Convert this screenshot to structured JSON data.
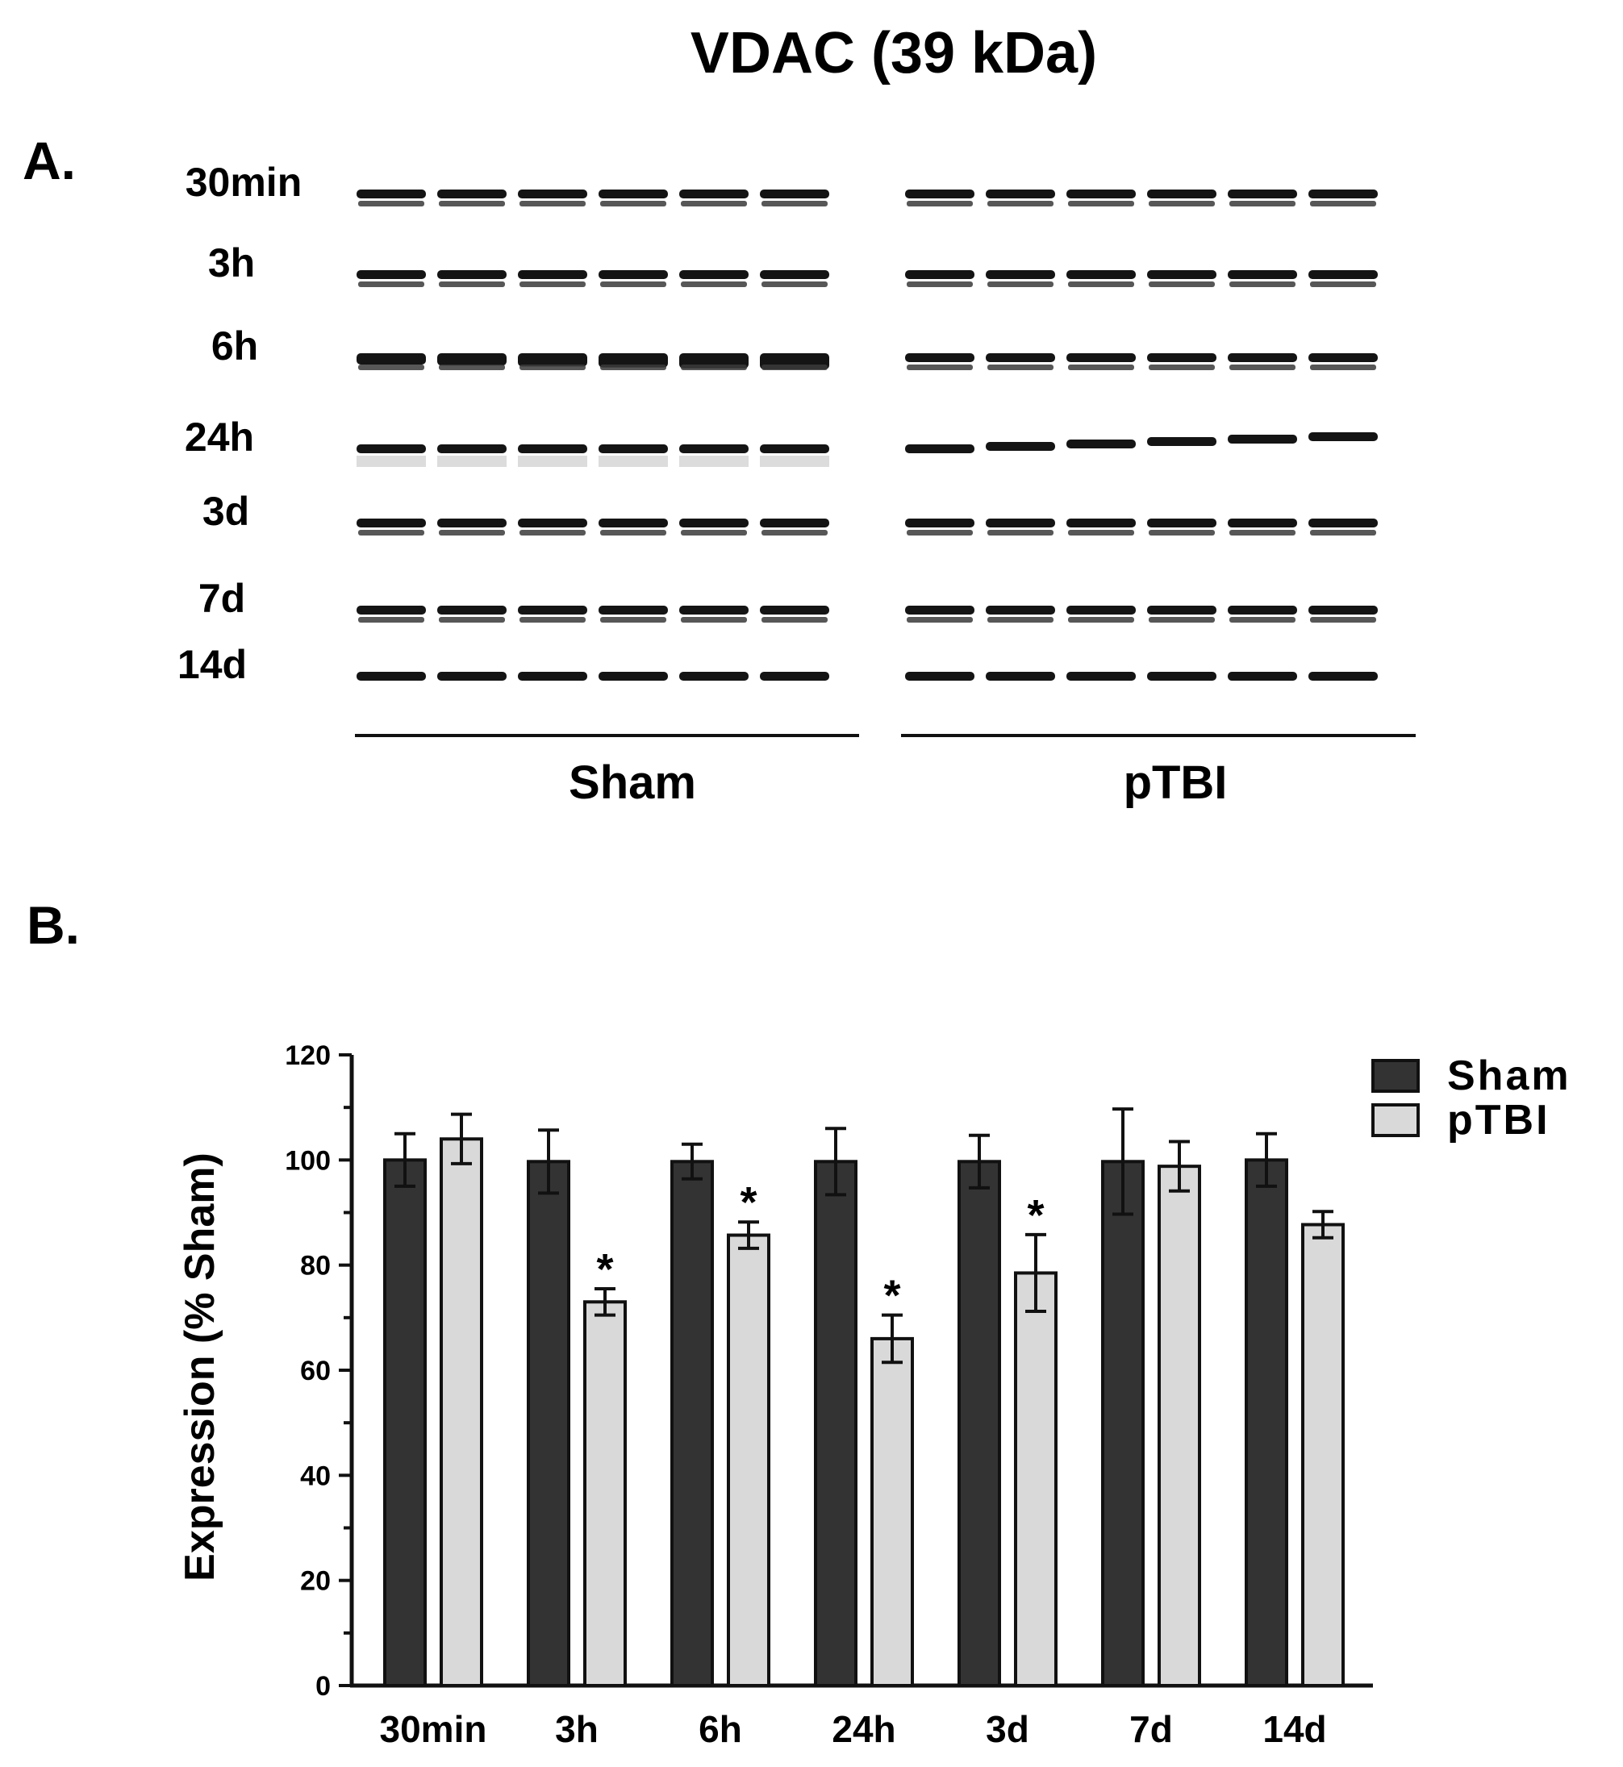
{
  "figure": {
    "title": "VDAC (39 kDa)",
    "panel_a": "A.",
    "panel_b": "B."
  },
  "blot": {
    "row_labels": [
      "30min",
      "3h",
      "6h",
      "24h",
      "3d",
      "7d",
      "14d"
    ],
    "groups": [
      "Sham",
      "pTBI"
    ],
    "lanes_per_group": 6
  },
  "chart_data": {
    "type": "bar",
    "categories": [
      "30min",
      "3h",
      "6h",
      "24h",
      "3d",
      "7d",
      "14d"
    ],
    "series": [
      {
        "name": "Sham",
        "color": "#333333",
        "values": [
          100,
          99.7,
          99.7,
          99.7,
          99.7,
          99.7,
          100
        ],
        "errors": [
          5,
          6,
          3.3,
          6.3,
          5,
          10,
          5
        ]
      },
      {
        "name": "pTBI",
        "color": "#d9d9d9",
        "values": [
          104,
          73,
          85.7,
          66,
          78.5,
          98.8,
          87.7
        ],
        "errors": [
          4.7,
          2.5,
          2.5,
          4.5,
          7.3,
          4.7,
          2.5
        ]
      }
    ],
    "significance": [
      "",
      "*",
      "*",
      "*",
      "*",
      "",
      ""
    ],
    "ylabel": "Expression (% Sham)",
    "xlabel": "",
    "ylim": [
      0,
      120
    ],
    "yticks": [
      "0",
      "20",
      "40",
      "60",
      "80",
      "100",
      "120"
    ],
    "legend_position": "top-right"
  }
}
